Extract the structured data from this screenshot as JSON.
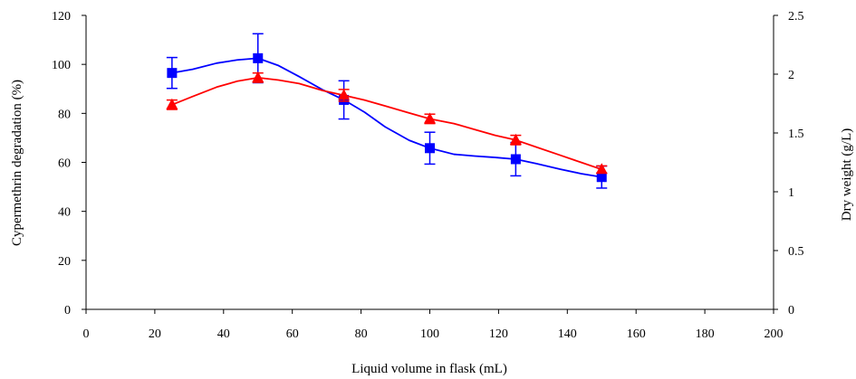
{
  "chart_data": {
    "type": "line",
    "title": "",
    "xlabel": "Liquid volume in flask (mL)",
    "ylabel_left": "Cypermethrin degradation (%)",
    "ylabel_right": "Dry weight (g/L)",
    "xlim": [
      0,
      200
    ],
    "ylim_left": [
      0,
      120
    ],
    "ylim_right": [
      0,
      2.5
    ],
    "x_ticks": [
      "0",
      "20",
      "40",
      "60",
      "80",
      "100",
      "120",
      "140",
      "160",
      "180",
      "200"
    ],
    "y_left_ticks": [
      "0",
      "20",
      "40",
      "60",
      "80",
      "100",
      "120"
    ],
    "y_right_ticks": [
      "0",
      "0.5",
      "1",
      "1.5",
      "2",
      "2.5"
    ],
    "grid": false,
    "legend": "none",
    "series": [
      {
        "axis": "left",
        "color": "#0000ff",
        "marker": "square",
        "x": [
          25,
          50,
          75,
          100,
          125,
          150
        ],
        "y": [
          96.5,
          102.5,
          85.5,
          65.8,
          61.3,
          54
        ],
        "err": [
          6.3,
          10,
          7.8,
          6.5,
          6.8,
          4.5
        ],
        "curve": [
          [
            25,
            96.5
          ],
          [
            31,
            98
          ],
          [
            38,
            100.5
          ],
          [
            44,
            101.8
          ],
          [
            50,
            102.5
          ],
          [
            56,
            99.5
          ],
          [
            62,
            95
          ],
          [
            69,
            89.5
          ],
          [
            75,
            85.5
          ],
          [
            81,
            80.5
          ],
          [
            87,
            74.5
          ],
          [
            94,
            69
          ],
          [
            100,
            65.8
          ],
          [
            107,
            63.3
          ],
          [
            113,
            62.6
          ],
          [
            119,
            62
          ],
          [
            125,
            61.3
          ],
          [
            131,
            59.5
          ],
          [
            138,
            57.2
          ],
          [
            144,
            55.4
          ],
          [
            150,
            54
          ]
        ]
      },
      {
        "axis": "right",
        "color": "#ff0000",
        "marker": "triangle",
        "x": [
          25,
          50,
          75,
          100,
          125,
          150
        ],
        "y": [
          1.74,
          1.97,
          1.82,
          1.62,
          1.44,
          1.19
        ],
        "err": [
          0.04,
          0.04,
          0.05,
          0.04,
          0.04,
          0.03
        ],
        "curve": [
          [
            25,
            1.74
          ],
          [
            31,
            1.81
          ],
          [
            38,
            1.89
          ],
          [
            44,
            1.94
          ],
          [
            50,
            1.97
          ],
          [
            56,
            1.95
          ],
          [
            62,
            1.92
          ],
          [
            69,
            1.86
          ],
          [
            75,
            1.82
          ],
          [
            81,
            1.78
          ],
          [
            87,
            1.73
          ],
          [
            94,
            1.67
          ],
          [
            100,
            1.62
          ],
          [
            107,
            1.58
          ],
          [
            113,
            1.53
          ],
          [
            119,
            1.48
          ],
          [
            125,
            1.44
          ],
          [
            131,
            1.38
          ],
          [
            138,
            1.31
          ],
          [
            144,
            1.25
          ],
          [
            150,
            1.19
          ]
        ]
      }
    ]
  }
}
